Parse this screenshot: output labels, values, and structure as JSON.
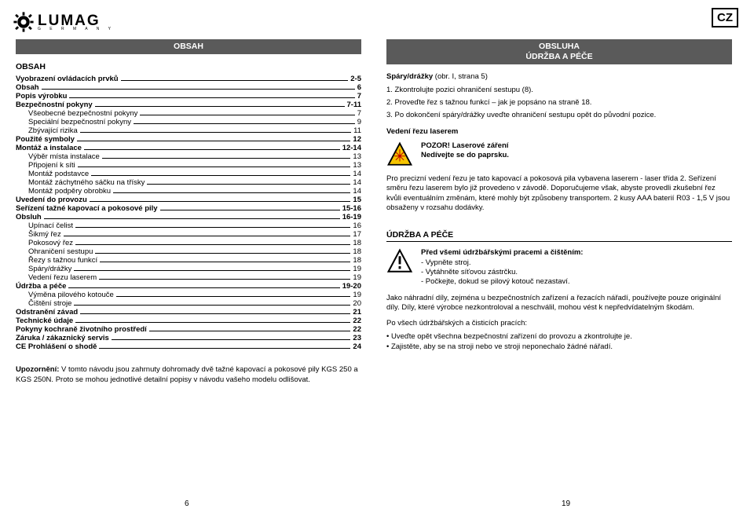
{
  "logo": {
    "brand": "LUMAG",
    "sub": "G  E  R  M  A  N  Y"
  },
  "cz": "CZ",
  "left": {
    "titlebar": "OBSAH",
    "section_head": "OBSAH",
    "toc": [
      {
        "label": "Vyobrazení ovládacích prvků",
        "page": "2-5",
        "bold": true,
        "indent": 0
      },
      {
        "label": "Obsah",
        "page": "6",
        "bold": true,
        "indent": 0
      },
      {
        "label": "Popis výrobku",
        "page": "7",
        "bold": true,
        "indent": 0
      },
      {
        "label": "Bezpečnostní pokyny",
        "page": "7-11",
        "bold": true,
        "indent": 0
      },
      {
        "label": "Všeobecné bezpečnostní pokyny",
        "page": "7",
        "bold": false,
        "indent": 1
      },
      {
        "label": "Speciální bezpečnostní pokyny",
        "page": "9",
        "bold": false,
        "indent": 1
      },
      {
        "label": "Zbývající rizika",
        "page": "11",
        "bold": false,
        "indent": 1
      },
      {
        "label": "Použité symboly",
        "page": "12",
        "bold": true,
        "indent": 0
      },
      {
        "label": "Montáž a instalace",
        "page": "12-14",
        "bold": true,
        "indent": 0
      },
      {
        "label": "Výběr místa instalace",
        "page": "13",
        "bold": false,
        "indent": 1
      },
      {
        "label": "Připojení k síti",
        "page": "13",
        "bold": false,
        "indent": 1
      },
      {
        "label": "Montáž podstavce",
        "page": "14",
        "bold": false,
        "indent": 1
      },
      {
        "label": "Montáž záchytného sáčku na třísky",
        "page": "14",
        "bold": false,
        "indent": 1
      },
      {
        "label": "Montáž podpěry obrobku",
        "page": "14",
        "bold": false,
        "indent": 1
      },
      {
        "label": "Uvedení do provozu",
        "page": "15",
        "bold": true,
        "indent": 0
      },
      {
        "label": "Seřízení tažné kapovací a pokosové pily",
        "page": "15-16",
        "bold": true,
        "indent": 0
      },
      {
        "label": "Obsluh",
        "page": "16-19",
        "bold": true,
        "indent": 0
      },
      {
        "label": "Upínací čelist",
        "page": "16",
        "bold": false,
        "indent": 1
      },
      {
        "label": "Šikmý řez",
        "page": "17",
        "bold": false,
        "indent": 1
      },
      {
        "label": "Pokosový řez",
        "page": "18",
        "bold": false,
        "indent": 1
      },
      {
        "label": "Ohraničení sestupu",
        "page": "18",
        "bold": false,
        "indent": 1
      },
      {
        "label": "Řezy s tažnou funkcí",
        "page": "18",
        "bold": false,
        "indent": 1
      },
      {
        "label": "Spáry/drážky",
        "page": "19",
        "bold": false,
        "indent": 1
      },
      {
        "label": "Vedení řezu laserem",
        "page": "19",
        "bold": false,
        "indent": 1
      },
      {
        "label": "Údržba a péče",
        "page": "19-20",
        "bold": true,
        "indent": 0
      },
      {
        "label": "Výměna pilového kotouče",
        "page": "19",
        "bold": false,
        "indent": 1
      },
      {
        "label": "Čištění stroje",
        "page": "20",
        "bold": false,
        "indent": 1
      },
      {
        "label": "Odstranění závad",
        "page": "21",
        "bold": true,
        "indent": 0
      },
      {
        "label": "Technické údaje",
        "page": "22",
        "bold": true,
        "indent": 0
      },
      {
        "label": "Pokyny kochraně životního prostředí",
        "page": "22",
        "bold": true,
        "indent": 0
      },
      {
        "label": "Záruka / zákaznický servis",
        "page": "23",
        "bold": true,
        "indent": 0
      },
      {
        "label": "CE Prohlášení o shodě",
        "page": "24",
        "bold": true,
        "indent": 0
      }
    ],
    "note_b": "Upozornění:",
    "note_t": " V tomto návodu jsou zahrnuty dohromady dvě tažné kapovací a pokosové pily KGS 250 a KGS 250N. Proto se mohou jednotlivé detailní popisy v návodu vašeho modelu odlišovat.",
    "pagenum": "6"
  },
  "right": {
    "titlebar_l1": "OBSLUHA",
    "titlebar_l2": "ÚDRŽBA A PÉČE",
    "spary_head_b": "Spáry/drážky",
    "spary_head_t": " (obr. I, strana 5)",
    "spary_1": "1.   Zkontrolujte pozici ohraničení sestupu (8).",
    "spary_2": "2.   Proveďte řez s tažnou funkcí – jak je popsáno na straně 18.",
    "spary_3": "3.   Po dokončení spáry/drážky uveďte ohraničení sestupu opět do původní pozice.",
    "vedeni_head": "Vedení řezu laserem",
    "laser_b1": "POZOR! Laserové záření",
    "laser_b2": "Nedívejte se do paprsku.",
    "laser_para": "Pro precizní vedení řezu je tato kapovací a pokosová pila vybavena laserem - laser třída 2. Seřízení směru řezu laserem bylo již provedeno v závodě. Doporučujeme však, abyste provedli zkušební řez kvůli eventuálním změnám, které mohly být způsobeny transportem. 2 kusy AAA baterií R03 - 1,5 V jsou obsaženy v rozsahu dodávky.",
    "udrzba_title": "ÚDRŽBA A PÉČE",
    "warn_head": "Před všemi údržbářskými pracemi a čištěním:",
    "warn_1": "-   Vypněte stroj.",
    "warn_2": "-   Vytáhněte síťovou zástrčku.",
    "warn_3": "-   Počkejte, dokud se pilový kotouč nezastaví.",
    "udrzba_p1": "Jako náhradní díly, zejména u bezpečnostních zařízení a řezacích nářadí, používejte pouze originální díly. Díly, které výrobce nezkontroloval a neschválil, mohou vést k nepředvídatelným škodám.",
    "udrzba_p2": "Po všech údržbářských a čisticích pracích:",
    "udrzba_b1": "• Uveďte opět všechna bezpečnostní zařízení do provozu a zkontrolujte je.",
    "udrzba_b2": "• Zajistěte, aby se na stroji nebo ve stroji neponechalo žádné nářadí.",
    "pagenum": "19"
  },
  "colors": {
    "bar": "#5a5a5a",
    "warn_yellow": "#f5c400",
    "laser_red": "#c00000"
  }
}
